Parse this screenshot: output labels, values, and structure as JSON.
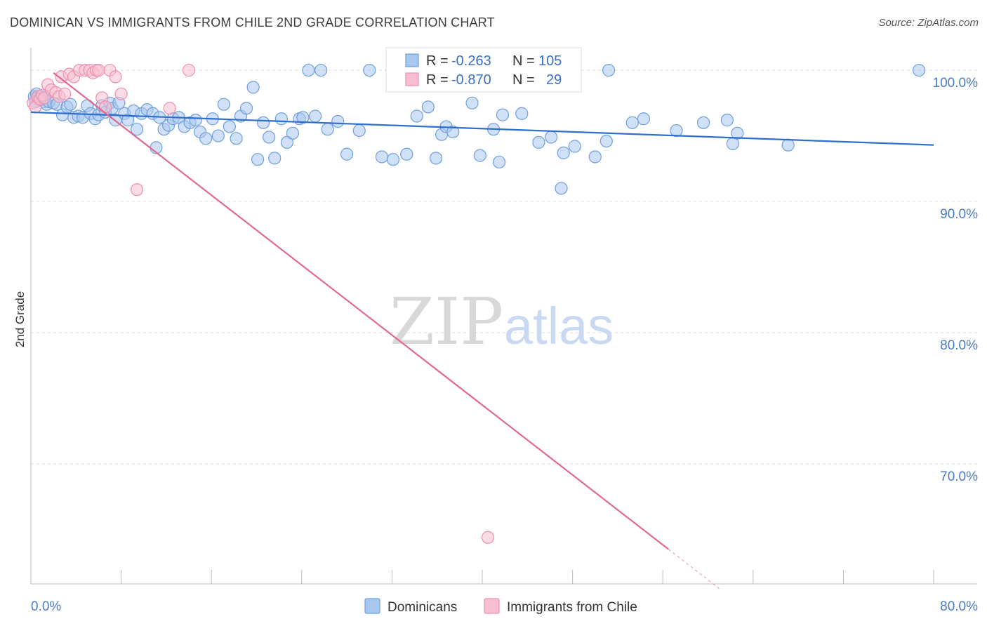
{
  "header": {
    "title": "DOMINICAN VS IMMIGRANTS FROM CHILE 2ND GRADE CORRELATION CHART",
    "source": "Source: ZipAtlas.com"
  },
  "watermark": {
    "zip": "ZIP",
    "atlas": "atlas"
  },
  "legend": {
    "rows": [
      {
        "r_label": "R =",
        "r_value": "-0.263",
        "n_label": "N =",
        "n_value": "105",
        "color": "#7ba7e0"
      },
      {
        "r_label": "R =",
        "r_value": "-0.870",
        "n_label": "N =",
        "n_value": "29",
        "color": "#f4a0bb"
      }
    ]
  },
  "bottom_legend": [
    "Dominicans",
    "Immigrants from Chile"
  ],
  "colors": {
    "blue_fill": "#a9c6ef",
    "blue_stroke": "#6f9fdc",
    "blue_line": "#2f6fcc",
    "pink_fill": "#f7bfd0",
    "pink_stroke": "#ee8fae",
    "pink_line": "#e06892",
    "grid": "#dcdcdc",
    "axis": "#bbbbbb"
  },
  "chart_data": {
    "type": "scatter",
    "title": "DOMINICAN VS IMMIGRANTS FROM CHILE 2ND GRADE CORRELATION CHART",
    "xlabel": "",
    "ylabel": "2nd Grade",
    "xlim": [
      0,
      80
    ],
    "ylim": [
      61.5,
      101.5
    ],
    "x_tick_labels": [
      "0.0%",
      "80.0%"
    ],
    "y_ticks": [
      {
        "value": 100,
        "label": "100.0%"
      },
      {
        "value": 90,
        "label": "90.0%"
      },
      {
        "value": 80,
        "label": "80.0%"
      },
      {
        "value": 70,
        "label": "70.0%"
      }
    ],
    "series": [
      {
        "name": "Dominicans",
        "r": -0.263,
        "n": 105,
        "trend": {
          "x": [
            0,
            80
          ],
          "y": [
            96.8,
            94.3
          ]
        },
        "points": [
          [
            0.3,
            98.0
          ],
          [
            0.4,
            97.6
          ],
          [
            0.5,
            98.2
          ],
          [
            0.6,
            97.9
          ],
          [
            0.7,
            97.7
          ],
          [
            0.9,
            98.0
          ],
          [
            1.1,
            98.1
          ],
          [
            1.2,
            97.6
          ],
          [
            1.4,
            97.4
          ],
          [
            1.6,
            97.6
          ],
          [
            2.0,
            97.5
          ],
          [
            2.3,
            97.4
          ],
          [
            2.8,
            96.6
          ],
          [
            3.2,
            97.2
          ],
          [
            3.5,
            97.4
          ],
          [
            3.8,
            96.4
          ],
          [
            4.2,
            96.5
          ],
          [
            4.6,
            96.4
          ],
          [
            5.0,
            97.3
          ],
          [
            5.3,
            96.7
          ],
          [
            5.7,
            96.3
          ],
          [
            6.0,
            96.6
          ],
          [
            6.3,
            97.3
          ],
          [
            6.6,
            96.8
          ],
          [
            7.0,
            97.5
          ],
          [
            7.2,
            97.1
          ],
          [
            7.5,
            96.2
          ],
          [
            7.8,
            97.5
          ],
          [
            8.3,
            96.7
          ],
          [
            8.6,
            96.2
          ],
          [
            9.1,
            96.9
          ],
          [
            9.4,
            95.5
          ],
          [
            9.8,
            96.7
          ],
          [
            10.3,
            97.0
          ],
          [
            10.8,
            96.7
          ],
          [
            11.1,
            94.1
          ],
          [
            11.4,
            96.4
          ],
          [
            11.8,
            95.5
          ],
          [
            12.2,
            95.8
          ],
          [
            12.6,
            96.3
          ],
          [
            13.1,
            96.4
          ],
          [
            13.6,
            95.7
          ],
          [
            14.1,
            96.0
          ],
          [
            14.6,
            96.2
          ],
          [
            15.0,
            95.3
          ],
          [
            15.5,
            94.8
          ],
          [
            16.1,
            96.3
          ],
          [
            16.6,
            95.0
          ],
          [
            17.1,
            97.4
          ],
          [
            17.6,
            95.7
          ],
          [
            18.2,
            94.8
          ],
          [
            18.6,
            96.5
          ],
          [
            19.1,
            97.1
          ],
          [
            19.7,
            98.7
          ],
          [
            20.1,
            93.2
          ],
          [
            20.6,
            96.0
          ],
          [
            21.1,
            94.9
          ],
          [
            21.6,
            93.3
          ],
          [
            22.2,
            96.3
          ],
          [
            22.7,
            94.5
          ],
          [
            23.2,
            95.2
          ],
          [
            23.8,
            96.3
          ],
          [
            24.1,
            96.4
          ],
          [
            24.6,
            100.0
          ],
          [
            25.2,
            96.5
          ],
          [
            25.7,
            100.0
          ],
          [
            26.3,
            95.5
          ],
          [
            27.2,
            96.1
          ],
          [
            28.0,
            93.6
          ],
          [
            29.1,
            95.4
          ],
          [
            30.0,
            100.0
          ],
          [
            31.1,
            93.4
          ],
          [
            32.0,
            100.0
          ],
          [
            32.1,
            93.2
          ],
          [
            33.3,
            93.6
          ],
          [
            34.2,
            96.5
          ],
          [
            35.2,
            97.2
          ],
          [
            35.9,
            93.3
          ],
          [
            36.4,
            95.1
          ],
          [
            36.8,
            95.7
          ],
          [
            37.4,
            95.3
          ],
          [
            38.0,
            100.0
          ],
          [
            39.1,
            97.5
          ],
          [
            39.8,
            93.5
          ],
          [
            41.0,
            95.5
          ],
          [
            41.5,
            93.0
          ],
          [
            41.8,
            96.6
          ],
          [
            43.5,
            96.7
          ],
          [
            45.0,
            94.5
          ],
          [
            46.1,
            94.9
          ],
          [
            47.0,
            91.0
          ],
          [
            47.2,
            93.7
          ],
          [
            48.2,
            94.2
          ],
          [
            50.0,
            93.4
          ],
          [
            51.0,
            94.6
          ],
          [
            51.2,
            100.0
          ],
          [
            53.3,
            96.0
          ],
          [
            54.3,
            96.3
          ],
          [
            57.2,
            95.4
          ],
          [
            59.6,
            96.0
          ],
          [
            61.7,
            96.2
          ],
          [
            62.2,
            94.4
          ],
          [
            62.6,
            95.2
          ],
          [
            67.1,
            94.3
          ],
          [
            78.7,
            100.0
          ]
        ]
      },
      {
        "name": "Immigrants from Chile",
        "r": -0.87,
        "n": 29,
        "trend": {
          "x": [
            2.0,
            56.5
          ],
          "y": [
            99.8,
            63.5
          ]
        },
        "trend_dashed": {
          "x": [
            56.5,
            61.0
          ],
          "y": [
            63.5,
            60.5
          ]
        },
        "points": [
          [
            0.2,
            97.5
          ],
          [
            0.4,
            97.2
          ],
          [
            0.6,
            98.0
          ],
          [
            0.8,
            97.8
          ],
          [
            1.0,
            98.1
          ],
          [
            1.2,
            97.9
          ],
          [
            1.5,
            98.9
          ],
          [
            1.8,
            98.5
          ],
          [
            2.2,
            98.3
          ],
          [
            2.5,
            98.0
          ],
          [
            2.7,
            99.5
          ],
          [
            3.0,
            98.2
          ],
          [
            3.4,
            99.7
          ],
          [
            3.8,
            99.5
          ],
          [
            4.3,
            100.0
          ],
          [
            4.8,
            100.0
          ],
          [
            5.2,
            100.0
          ],
          [
            5.5,
            99.8
          ],
          [
            5.8,
            100.0
          ],
          [
            6.0,
            100.0
          ],
          [
            6.3,
            97.9
          ],
          [
            6.6,
            97.2
          ],
          [
            7.0,
            100.0
          ],
          [
            7.5,
            99.5
          ],
          [
            8.0,
            98.2
          ],
          [
            9.4,
            90.9
          ],
          [
            12.3,
            97.1
          ],
          [
            14.0,
            100.0
          ],
          [
            40.5,
            64.4
          ]
        ]
      }
    ]
  }
}
